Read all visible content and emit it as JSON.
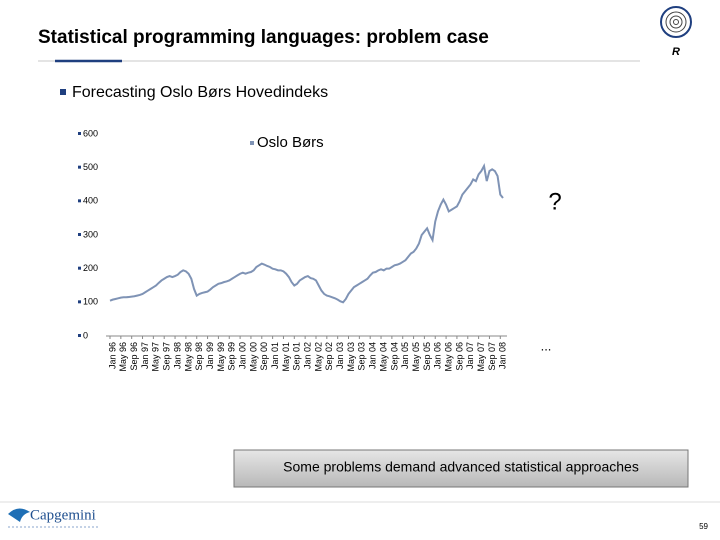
{
  "slide": {
    "title": "Statistical programming languages: problem case",
    "bullet": "Forecasting Oslo Børs Hovedindeks",
    "question": "?",
    "ellipsis": "...",
    "callout": "Some problems demand advanced statistical approaches",
    "logo_text": "Capgemini",
    "badge": "R",
    "page_number": "59"
  },
  "chart_data": {
    "type": "line",
    "legend_position": "top",
    "grid": false,
    "categories": [
      "Jan 96",
      null,
      null,
      null,
      "May 96",
      null,
      null,
      null,
      "Sep 96",
      null,
      null,
      null,
      "Jan 97",
      null,
      null,
      null,
      "May 97",
      null,
      null,
      null,
      "Sep 97",
      null,
      null,
      null,
      "Jan 98",
      null,
      null,
      null,
      "May 98",
      null,
      null,
      null,
      "Sep 98",
      null,
      null,
      null,
      "Jan 99",
      null,
      null,
      null,
      "May 99",
      null,
      null,
      null,
      "Sep 99",
      null,
      null,
      null,
      "Jan 00",
      null,
      null,
      null,
      "May 00",
      null,
      null,
      null,
      "Sep 00",
      null,
      null,
      null,
      "Jan 01",
      null,
      null,
      null,
      "May 01",
      null,
      null,
      null,
      "Sep 01",
      null,
      null,
      null,
      "Jan 02",
      null,
      null,
      null,
      "May 02",
      null,
      null,
      null,
      "Sep 02",
      null,
      null,
      null,
      "Jan 03",
      null,
      null,
      null,
      "May 03",
      null,
      null,
      null,
      "Sep 03",
      null,
      null,
      null,
      "Jan 04",
      null,
      null,
      null,
      "May 04",
      null,
      null,
      null,
      "Sep 04",
      null,
      null,
      null,
      "Jan 05",
      null,
      null,
      null,
      "May 05",
      null,
      null,
      null,
      "Sep 05",
      null,
      null,
      null,
      "Jan 06",
      null,
      null,
      null,
      "May 06",
      null,
      null,
      null,
      "Sep 06",
      null,
      null,
      null,
      "Jan 07",
      null,
      null,
      null,
      "May 07",
      null,
      null,
      null,
      "Sep 07",
      null,
      null,
      null,
      "Jan 08",
      null
    ],
    "series": [
      {
        "name": "Oslo Børs",
        "color": "#7f93b5",
        "values": [
          105,
          108,
          110,
          112,
          114,
          115,
          115,
          116,
          117,
          118,
          120,
          122,
          125,
          130,
          135,
          140,
          145,
          150,
          158,
          165,
          170,
          175,
          178,
          175,
          178,
          182,
          190,
          195,
          192,
          185,
          170,
          140,
          120,
          125,
          128,
          130,
          132,
          138,
          145,
          150,
          155,
          157,
          160,
          162,
          165,
          170,
          175,
          180,
          185,
          188,
          185,
          188,
          190,
          195,
          205,
          210,
          215,
          212,
          208,
          205,
          200,
          198,
          195,
          195,
          192,
          185,
          175,
          160,
          150,
          155,
          165,
          170,
          175,
          178,
          172,
          170,
          165,
          150,
          135,
          125,
          120,
          118,
          115,
          112,
          108,
          103,
          100,
          110,
          125,
          135,
          145,
          150,
          155,
          160,
          165,
          170,
          180,
          188,
          190,
          195,
          198,
          195,
          200,
          200,
          205,
          210,
          212,
          215,
          220,
          225,
          235,
          245,
          250,
          260,
          275,
          300,
          310,
          320,
          300,
          285,
          340,
          370,
          390,
          405,
          390,
          370,
          375,
          380,
          385,
          400,
          420,
          430,
          440,
          450,
          465,
          460,
          480,
          490,
          505,
          460,
          490,
          495,
          490,
          475,
          420,
          410
        ]
      }
    ],
    "ylim": [
      0,
      600
    ],
    "yticks": [
      0,
      100,
      200,
      300,
      400,
      500,
      600
    ]
  }
}
